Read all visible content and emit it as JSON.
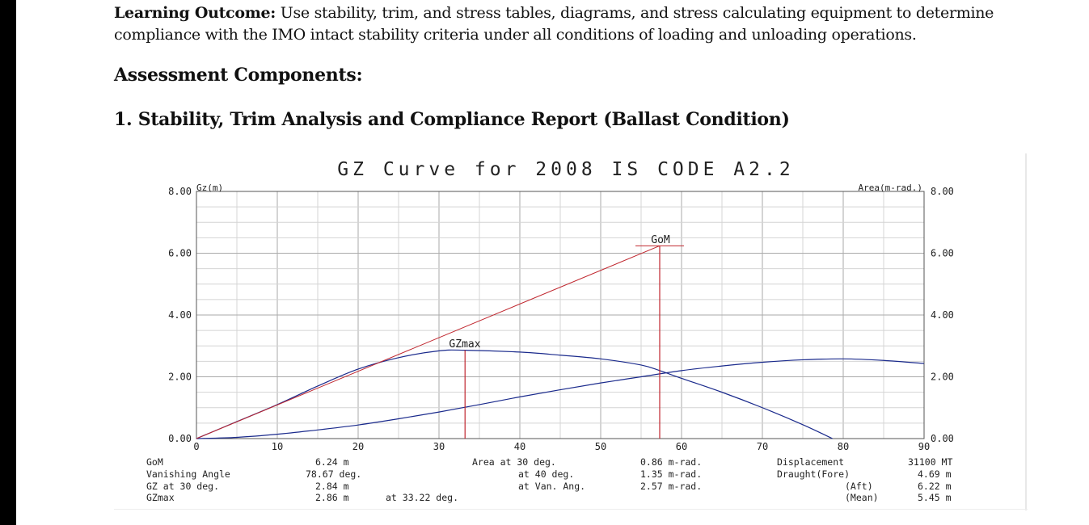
{
  "document": {
    "learning_outcome_label": "Learning Outcome:",
    "learning_outcome_text": " Use stability, trim, and stress tables, diagrams, and stress calculating equipment to determine compliance with the IMO intact stability criteria under all conditions of loading and unloading operations.",
    "assessment_heading": "Assessment Components:",
    "section_heading": "1. Stability, Trim Analysis and Compliance Report (Ballast Condition)"
  },
  "chart_data": {
    "type": "line",
    "title": "GZ Curve for 2008 IS CODE A2.2",
    "ylabel_left": "Gz(m)",
    "ylabel_right": "Area(m-rad.)",
    "xlim": [
      0,
      90
    ],
    "ylim": [
      0,
      8
    ],
    "x_ticks": [
      "0",
      "10",
      "20",
      "30",
      "40",
      "50",
      "60",
      "70",
      "80",
      "90"
    ],
    "y_ticks": [
      "0.00",
      "2.00",
      "4.00",
      "6.00",
      "8.00"
    ],
    "grid": true,
    "colors": {
      "curve": "#1a2a8c",
      "gom": "#c0262e",
      "grid": "#bbbbbb",
      "frame": "#555555"
    },
    "series": [
      {
        "name": "GZ",
        "x": [
          0,
          5,
          10,
          15,
          20,
          25,
          30,
          33.22,
          40,
          45,
          50,
          55,
          57.3,
          60,
          65,
          70,
          75,
          78.67
        ],
        "y": [
          0,
          0.55,
          1.1,
          1.7,
          2.25,
          2.62,
          2.84,
          2.86,
          2.8,
          2.7,
          2.58,
          2.38,
          2.2,
          1.95,
          1.5,
          1.0,
          0.45,
          0
        ]
      },
      {
        "name": "Area",
        "x": [
          0,
          5,
          10,
          15,
          20,
          25,
          30,
          35,
          40,
          45,
          50,
          55,
          60,
          65,
          70,
          75,
          80,
          85,
          90
        ],
        "y": [
          0,
          0.04,
          0.14,
          0.28,
          0.44,
          0.64,
          0.86,
          1.1,
          1.35,
          1.58,
          1.8,
          2.0,
          2.2,
          2.35,
          2.47,
          2.55,
          2.58,
          2.53,
          2.43
        ]
      }
    ],
    "gom_line": {
      "x": [
        0,
        57.3
      ],
      "y": [
        0,
        6.24
      ]
    },
    "annotations": {
      "gom_label": "GoM",
      "gzmax_label": "GZmax",
      "gzmax_x": 33.22,
      "gzmax_y": 2.86,
      "gom_x": 57.3,
      "gom_y": 6.24
    },
    "info_table": {
      "gom_label": "GoM",
      "gom_value": "6.24 m",
      "vanishing_label": "Vanishing Angle",
      "vanishing_value": "78.67 deg.",
      "gz30_label": "GZ at 30 deg.",
      "gz30_value": "2.84 m",
      "gzmax_label": "GZmax",
      "gzmax_value": "2.86 m",
      "gzmax_at": "at 33.22 deg.",
      "area30_label": "Area at 30 deg.",
      "area30_value": "0.86 m-rad.",
      "area40_label": "at 40 deg.",
      "area40_value": "1.35 m-rad.",
      "areavan_label": "at Van. Ang.",
      "areavan_value": "2.57 m-rad.",
      "displacement_label": "Displacement",
      "displacement_value": "31100 MT",
      "draught_fore_label": "Draught(Fore)",
      "draught_fore_value": "4.69 m",
      "draught_aft_label": "(Aft)",
      "draught_aft_value": "6.22 m",
      "draught_mean_label": "(Mean)",
      "draught_mean_value": "5.45 m"
    }
  }
}
